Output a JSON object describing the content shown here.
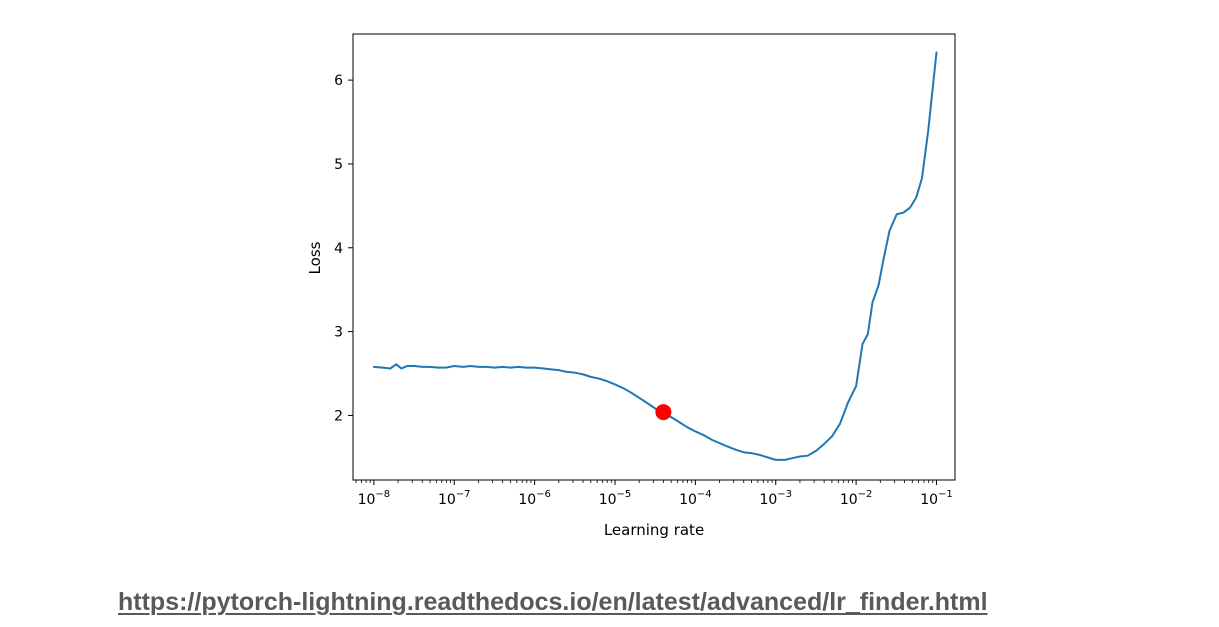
{
  "chart_data": {
    "type": "line",
    "xlabel": "Learning rate",
    "ylabel": "Loss",
    "xscale": "log",
    "xlim": [
      5.5e-09,
      0.17
    ],
    "ylim": [
      1.23,
      6.55
    ],
    "x_tick_values": [
      1e-08,
      1e-07,
      1e-06,
      1e-05,
      0.0001,
      0.001,
      0.01,
      0.1
    ],
    "x_tick_labels": [
      {
        "base": "10",
        "exp": "−8"
      },
      {
        "base": "10",
        "exp": "−7"
      },
      {
        "base": "10",
        "exp": "−6"
      },
      {
        "base": "10",
        "exp": "−5"
      },
      {
        "base": "10",
        "exp": "−4"
      },
      {
        "base": "10",
        "exp": "−3"
      },
      {
        "base": "10",
        "exp": "−2"
      },
      {
        "base": "10",
        "exp": "−1"
      }
    ],
    "y_ticks": [
      2,
      3,
      4,
      5,
      6
    ],
    "y_tick_labels": [
      "2",
      "3",
      "4",
      "5",
      "6"
    ],
    "grid": false,
    "series": [
      {
        "color": "#1f77b4",
        "points": [
          [
            1e-08,
            2.58
          ],
          [
            1.3e-08,
            2.57
          ],
          [
            1.6e-08,
            2.56
          ],
          [
            1.9e-08,
            2.61
          ],
          [
            2.2e-08,
            2.56
          ],
          [
            2.6e-08,
            2.59
          ],
          [
            3.2e-08,
            2.59
          ],
          [
            4e-08,
            2.58
          ],
          [
            5e-08,
            2.58
          ],
          [
            6.3e-08,
            2.57
          ],
          [
            7.9e-08,
            2.57
          ],
          [
            1e-07,
            2.59
          ],
          [
            1.3e-07,
            2.58
          ],
          [
            1.6e-07,
            2.59
          ],
          [
            2e-07,
            2.58
          ],
          [
            2.5e-07,
            2.58
          ],
          [
            3.2e-07,
            2.57
          ],
          [
            4e-07,
            2.58
          ],
          [
            5e-07,
            2.57
          ],
          [
            6.3e-07,
            2.58
          ],
          [
            7.9e-07,
            2.57
          ],
          [
            1e-06,
            2.57
          ],
          [
            1.3e-06,
            2.56
          ],
          [
            1.6e-06,
            2.55
          ],
          [
            2e-06,
            2.54
          ],
          [
            2.5e-06,
            2.52
          ],
          [
            3.2e-06,
            2.51
          ],
          [
            4e-06,
            2.49
          ],
          [
            5e-06,
            2.46
          ],
          [
            6.3e-06,
            2.44
          ],
          [
            7.9e-06,
            2.41
          ],
          [
            1e-05,
            2.37
          ],
          [
            1.3e-05,
            2.32
          ],
          [
            1.6e-05,
            2.27
          ],
          [
            2e-05,
            2.21
          ],
          [
            2.5e-05,
            2.15
          ],
          [
            3.2e-05,
            2.08
          ],
          [
            4e-05,
            2.03
          ],
          [
            5e-05,
            1.98
          ],
          [
            6.3e-05,
            1.92
          ],
          [
            7.9e-05,
            1.86
          ],
          [
            0.0001,
            1.81
          ],
          [
            0.00013,
            1.76
          ],
          [
            0.00016,
            1.71
          ],
          [
            0.0002,
            1.67
          ],
          [
            0.00025,
            1.63
          ],
          [
            0.00032,
            1.59
          ],
          [
            0.0004,
            1.56
          ],
          [
            0.0005,
            1.55
          ],
          [
            0.00063,
            1.53
          ],
          [
            0.00079,
            1.5
          ],
          [
            0.001,
            1.47
          ],
          [
            0.0013,
            1.47
          ],
          [
            0.0016,
            1.49
          ],
          [
            0.002,
            1.51
          ],
          [
            0.0025,
            1.52
          ],
          [
            0.0032,
            1.58
          ],
          [
            0.004,
            1.66
          ],
          [
            0.005,
            1.75
          ],
          [
            0.0063,
            1.9
          ],
          [
            0.0079,
            2.15
          ],
          [
            0.01,
            2.35
          ],
          [
            0.012,
            2.85
          ],
          [
            0.014,
            2.97
          ],
          [
            0.016,
            3.35
          ],
          [
            0.019,
            3.55
          ],
          [
            0.022,
            3.87
          ],
          [
            0.026,
            4.2
          ],
          [
            0.032,
            4.4
          ],
          [
            0.039,
            4.42
          ],
          [
            0.047,
            4.48
          ],
          [
            0.056,
            4.6
          ],
          [
            0.066,
            4.83
          ],
          [
            0.079,
            5.4
          ],
          [
            0.1,
            6.33
          ]
        ]
      }
    ],
    "suggestion_point": {
      "x": 4e-05,
      "y": 2.04,
      "color": "#ff0000"
    }
  },
  "source": {
    "url": "https://pytorch-lightning.readthedocs.io/en/latest/advanced/lr_finder.html"
  }
}
